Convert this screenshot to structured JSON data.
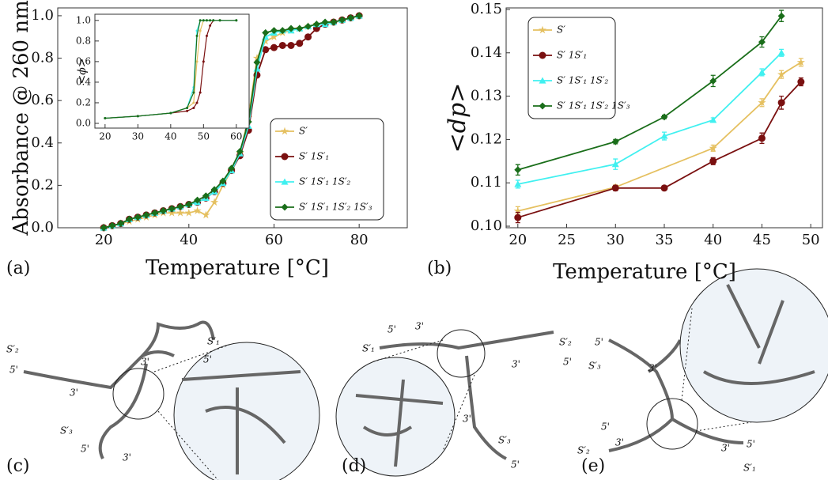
{
  "chart_data": [
    {
      "type": "line",
      "xlabel": "Temperature [°C]",
      "ylabel": "Absorbance @ 260 nm",
      "xlim": [
        9.2,
        91.3
      ],
      "ylim": [
        0,
        1.037
      ],
      "xticks": [
        20,
        40,
        60,
        80
      ],
      "yticks": [
        {
          "value": 0,
          "label": "0.0"
        },
        {
          "value": 0.2,
          "label": "0.2"
        },
        {
          "value": 0.4,
          "label": "0.4"
        },
        {
          "value": 0.6,
          "label": "0.6"
        },
        {
          "value": 0.8,
          "label": "0.8"
        },
        {
          "value": 1,
          "label": "1.0"
        }
      ],
      "legend": "lower right",
      "x": [
        20,
        22,
        24,
        26,
        28,
        30,
        32,
        34,
        36,
        38,
        40,
        42,
        44,
        46,
        48,
        50,
        52,
        54,
        56,
        58,
        60,
        62,
        64,
        66,
        68,
        70,
        72,
        74,
        76,
        78,
        80
      ],
      "series": [
        {
          "name": "S′",
          "color": "#e5c060",
          "marker": "star",
          "values": [
            0,
            0.01,
            0.02,
            0.03,
            0.04,
            0.05,
            0.06,
            0.07,
            0.07,
            0.07,
            0.07,
            0.08,
            0.06,
            0.12,
            0.2,
            0.27,
            0.35,
            0.52,
            0.8,
            0.88,
            0.9,
            0.92,
            0.93,
            0.94,
            0.95,
            0.96,
            0.96,
            0.97,
            0.98,
            0.99,
            1.0
          ]
        },
        {
          "name": "S′ 1S′₁",
          "color": "#7a1010",
          "marker": "circle",
          "values": [
            0,
            0.01,
            0.02,
            0.04,
            0.05,
            0.06,
            0.07,
            0.08,
            0.09,
            0.1,
            0.11,
            0.12,
            0.14,
            0.17,
            0.21,
            0.27,
            0.34,
            0.46,
            0.72,
            0.84,
            0.85,
            0.86,
            0.86,
            0.87,
            0.9,
            0.94,
            0.96,
            0.97,
            0.98,
            0.99,
            1.0
          ]
        },
        {
          "name": "S′ 1S′₁ 1S′₂",
          "color": "#40f0f0",
          "marker": "triangle",
          "values": [
            0,
            0.01,
            0.02,
            0.04,
            0.05,
            0.06,
            0.07,
            0.08,
            0.09,
            0.1,
            0.11,
            0.12,
            0.14,
            0.17,
            0.21,
            0.27,
            0.35,
            0.48,
            0.75,
            0.9,
            0.92,
            0.93,
            0.93,
            0.94,
            0.95,
            0.96,
            0.96,
            0.97,
            0.98,
            0.99,
            1.0
          ]
        },
        {
          "name": "S′ 1S′₁ 1S′₂ 1S′₃",
          "color": "#1a6e1a",
          "marker": "diamond",
          "values": [
            0,
            0.01,
            0.02,
            0.04,
            0.05,
            0.06,
            0.07,
            0.08,
            0.09,
            0.1,
            0.11,
            0.13,
            0.15,
            0.18,
            0.22,
            0.28,
            0.36,
            0.5,
            0.78,
            0.92,
            0.93,
            0.93,
            0.94,
            0.94,
            0.95,
            0.96,
            0.97,
            0.97,
            0.98,
            0.99,
            1.0
          ]
        }
      ]
    },
    {
      "type": "line",
      "ylabel": "<ϕ>",
      "xlim": [
        16.9,
        63.9
      ],
      "ylim": [
        -0.046,
        1.06
      ],
      "xticks": [
        20,
        30,
        40,
        50,
        60
      ],
      "yticks": [
        {
          "value": 0,
          "label": "0.0"
        },
        {
          "value": 0.2,
          "label": "0.2"
        },
        {
          "value": 0.4,
          "label": "0.4"
        },
        {
          "value": 0.6,
          "label": "0.6"
        },
        {
          "value": 0.8,
          "label": "0.8"
        },
        {
          "value": 1,
          "label": "1.0"
        }
      ],
      "x": [
        20,
        30,
        40,
        45,
        47,
        48,
        49,
        50,
        51,
        52,
        53,
        55,
        60
      ],
      "series": [
        {
          "color": "#e5c060",
          "values": [
            0.05,
            0.07,
            0.1,
            0.15,
            0.2,
            0.6,
            0.9,
            1,
            1,
            1,
            1,
            1,
            1
          ]
        },
        {
          "color": "#7a1010",
          "values": [
            0.05,
            0.07,
            0.1,
            0.12,
            0.15,
            0.2,
            0.3,
            0.6,
            0.85,
            0.95,
            1,
            1,
            1
          ]
        },
        {
          "color": "#40f0f0",
          "values": [
            0.05,
            0.07,
            0.1,
            0.15,
            0.35,
            0.9,
            1,
            1,
            1,
            1,
            1,
            1,
            1
          ]
        },
        {
          "color": "#1a6e1a",
          "values": [
            0.05,
            0.07,
            0.1,
            0.15,
            0.3,
            0.85,
            1,
            1,
            1,
            1,
            1,
            1,
            1
          ]
        }
      ]
    },
    {
      "type": "line",
      "xlabel": "Temperature [°C]",
      "ylabel": "<dp>",
      "xlim": [
        18.8,
        51.2
      ],
      "ylim": [
        0.09964,
        0.15036
      ],
      "xticks": [
        20,
        25,
        30,
        35,
        40,
        45,
        50
      ],
      "yticks": [
        {
          "value": 0.1,
          "label": "0.10"
        },
        {
          "value": 0.11,
          "label": "0.11"
        },
        {
          "value": 0.12,
          "label": "0.12"
        },
        {
          "value": 0.13,
          "label": "0.13"
        },
        {
          "value": 0.14,
          "label": "0.14"
        },
        {
          "value": 0.15,
          "label": "0.15"
        }
      ],
      "legend": "upper left",
      "series": [
        {
          "name": "S′",
          "color": "#e5c060",
          "marker": "star",
          "x": [
            20,
            30,
            40,
            45,
            47,
            49
          ],
          "values": [
            0.1035,
            0.109,
            0.118,
            0.1285,
            0.135,
            0.1378
          ],
          "errors": [
            0.001,
            0.0005,
            0.0007,
            0.0009,
            0.0009,
            0.0009
          ]
        },
        {
          "name": "S′ 1S′₁",
          "color": "#7a1010",
          "marker": "circle",
          "x": [
            20,
            30,
            35,
            40,
            45,
            47,
            49
          ],
          "values": [
            0.102,
            0.1088,
            0.1088,
            0.115,
            0.1203,
            0.1285,
            0.1333
          ],
          "errors": [
            0.0012,
            0.0006,
            0.0005,
            0.0008,
            0.0012,
            0.0015,
            0.0009
          ]
        },
        {
          "name": "S′ 1S′₁ 1S′₂",
          "color": "#40f0f0",
          "marker": "triangle",
          "x": [
            20,
            30,
            35,
            40,
            45,
            47
          ],
          "values": [
            0.1097,
            0.1143,
            0.1208,
            0.1245,
            0.1355,
            0.14
          ],
          "errors": [
            0.0009,
            0.0012,
            0.0009,
            0.0005,
            0.0008,
            0.0008
          ]
        },
        {
          "name": "S′ 1S′₁ 1S′₂ 1S′₃",
          "color": "#1a6e1a",
          "marker": "diamond",
          "x": [
            20,
            30,
            35,
            40,
            45,
            47
          ],
          "values": [
            0.113,
            0.1195,
            0.1252,
            0.1335,
            0.1425,
            0.1485
          ],
          "errors": [
            0.0012,
            0.0005,
            0.0004,
            0.0013,
            0.0012,
            0.0013
          ]
        }
      ]
    }
  ],
  "panels": [
    {
      "label": "(a)"
    },
    {
      "label": "(b)"
    },
    {
      "label": "(c)",
      "annotations": [
        "S′₁",
        "5'",
        "S′₂",
        "5'",
        "3'",
        "3'",
        "S′₃",
        "5'",
        "3'"
      ]
    },
    {
      "label": "(d)",
      "annotations": [
        "5'",
        "3'",
        "S′₁",
        "S′₂",
        "5'",
        "3'",
        "3'",
        "S′₃",
        "5'"
      ]
    },
    {
      "label": "(e)",
      "annotations": [
        "5'",
        "S′₃",
        "3'",
        "5'",
        "S′₂",
        "3'",
        "3'",
        "5'",
        "S′₁"
      ]
    }
  ]
}
